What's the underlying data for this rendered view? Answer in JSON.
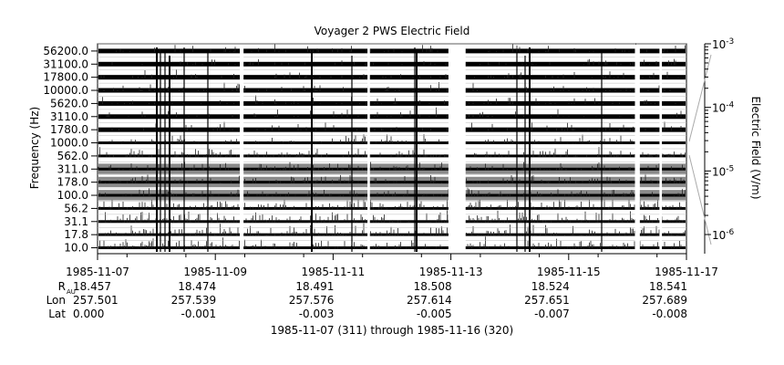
{
  "chart_data": {
    "type": "heatmap",
    "title": "Voyager 2 PWS Electric Field",
    "ylabel": "Frequency (Hz)",
    "channels_hz": [
      "10.0",
      "17.8",
      "31.1",
      "56.2",
      "100.0",
      "178.0",
      "311.0",
      "562.0",
      "1000.0",
      "1780.0",
      "3110.0",
      "5620.0",
      "10000.0",
      "17800.0",
      "31100.0",
      "56200.0"
    ],
    "x_ticks": [
      "1985-11-07",
      "1985-11-09",
      "1985-11-11",
      "1985-11-13",
      "1985-11-15",
      "1985-11-17"
    ],
    "xlim": [
      "1985-11-07",
      "1985-11-17"
    ],
    "data_gaps": [
      [
        "1985-11-09 10:00",
        "1985-11-09 11:30"
      ],
      [
        "1985-11-11 14:00",
        "1985-11-11 15:00"
      ],
      [
        "1985-11-12 23:00",
        "1985-11-13 06:00"
      ],
      [
        "1985-11-16 03:00",
        "1985-11-16 05:00"
      ],
      [
        "1985-11-16 13:00",
        "1985-11-16 14:00"
      ]
    ],
    "colorbar": {
      "label": "Electric Field (V/m)",
      "scale": "log",
      "range": [
        5e-07,
        0.001
      ],
      "ticks": [
        {
          "base": "10",
          "exp": "-3",
          "value": 0.001
        },
        {
          "base": "10",
          "exp": "-4",
          "value": 0.0001
        },
        {
          "base": "10",
          "exp": "-5",
          "value": 1e-05
        },
        {
          "base": "10",
          "exp": "-6",
          "value": 1e-06
        }
      ]
    },
    "ephemeris": {
      "rows": [
        {
          "label": "R",
          "sub": "AU",
          "values": [
            "18.457",
            "18.474",
            "18.491",
            "18.508",
            "18.524",
            "18.541"
          ]
        },
        {
          "label": "Lon",
          "sub": "",
          "values": [
            "257.501",
            "257.539",
            "257.576",
            "257.614",
            "257.651",
            "257.689"
          ]
        },
        {
          "label": "Lat",
          "sub": "",
          "values": [
            "0.000",
            "-0.001",
            "-0.003",
            "-0.005",
            "-0.007",
            "-0.008"
          ]
        }
      ]
    }
  },
  "footer": "1985-11-07 (311) through 1985-11-16 (320)"
}
